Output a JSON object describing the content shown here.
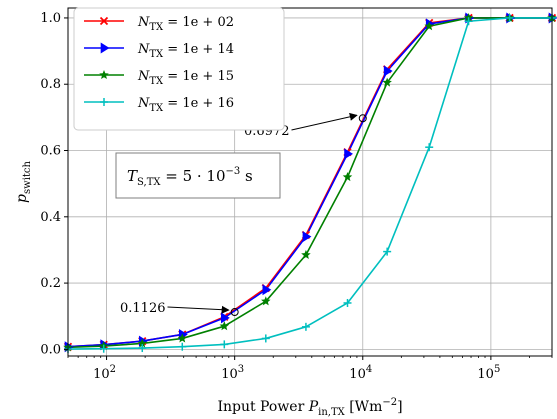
{
  "chart_data": {
    "type": "line",
    "xscale": "log",
    "xlim": [
      50,
      300000
    ],
    "ylim": [
      -0.02,
      1.03
    ],
    "grid": true,
    "legend_position": "top-left",
    "xlabel": "Input Power P_in,TX [Wm^-2]",
    "ylabel": "p_switch",
    "x_ticks": [
      {
        "value": 100,
        "base": "10",
        "exp": "2"
      },
      {
        "value": 1000,
        "base": "10",
        "exp": "3"
      },
      {
        "value": 10000,
        "base": "10",
        "exp": "4"
      },
      {
        "value": 100000,
        "base": "10",
        "exp": "5"
      }
    ],
    "y_ticks": [
      {
        "value": 0.0,
        "label": "0.0"
      },
      {
        "value": 0.2,
        "label": "0.2"
      },
      {
        "value": 0.4,
        "label": "0.4"
      },
      {
        "value": 0.6,
        "label": "0.6"
      },
      {
        "value": 0.8,
        "label": "0.8"
      },
      {
        "value": 1.0,
        "label": "1.0"
      }
    ],
    "series": [
      {
        "name": "N_TX = 1e+02",
        "color": "#ff0000",
        "marker": "x",
        "x": [
          50,
          95,
          190,
          390,
          830,
          1750,
          3600,
          7600,
          15500,
          33000,
          67000,
          140000,
          300000
        ],
        "y": [
          0.008,
          0.014,
          0.025,
          0.045,
          0.098,
          0.185,
          0.345,
          0.595,
          0.845,
          0.985,
          1.0,
          1.0,
          1.0
        ]
      },
      {
        "name": "N_TX = 1e+14",
        "color": "#0000ff",
        "marker": "triangle-right",
        "x": [
          50,
          95,
          190,
          390,
          830,
          1750,
          3600,
          7600,
          15500,
          33000,
          67000,
          140000,
          300000
        ],
        "y": [
          0.008,
          0.014,
          0.025,
          0.045,
          0.095,
          0.18,
          0.34,
          0.59,
          0.84,
          0.982,
          1.0,
          1.0,
          1.0
        ]
      },
      {
        "name": "N_TX = 1e+15",
        "color": "#008000",
        "marker": "star",
        "x": [
          50,
          95,
          190,
          390,
          830,
          1750,
          3600,
          7600,
          15500,
          33000,
          67000,
          140000,
          300000
        ],
        "y": [
          0.006,
          0.01,
          0.018,
          0.033,
          0.07,
          0.145,
          0.285,
          0.52,
          0.805,
          0.975,
          1.0,
          1.0,
          1.0
        ]
      },
      {
        "name": "N_TX = 1e+16",
        "color": "#00bfbf",
        "marker": "plus",
        "x": [
          50,
          95,
          190,
          390,
          830,
          1750,
          3600,
          7600,
          15500,
          33000,
          67000,
          140000,
          300000
        ],
        "y": [
          0.001,
          0.002,
          0.004,
          0.008,
          0.015,
          0.033,
          0.068,
          0.14,
          0.295,
          0.61,
          0.99,
          1.0,
          1.0
        ]
      }
    ],
    "legend": [
      {
        "base": "N",
        "sub": "TX",
        "eq": " = 1e + 02"
      },
      {
        "base": "N",
        "sub": "TX",
        "eq": " = 1e + 14"
      },
      {
        "base": "N",
        "sub": "TX",
        "eq": " = 1e + 15"
      },
      {
        "base": "N",
        "sub": "TX",
        "eq": " = 1e + 16"
      }
    ],
    "annotations": [
      {
        "label": "0.6972",
        "x": 10000,
        "y": 0.6972
      },
      {
        "label": "0.1126",
        "x": 1000,
        "y": 0.1126
      }
    ],
    "textbox": {
      "label": "T_S,TX = 5 · 10^-3 s",
      "base": "T",
      "sub": "S,TX",
      "eq": " = 5 · 10",
      "exp": "−3",
      "unit": " s"
    },
    "xlabel_parts": {
      "pre": "Input Power ",
      "base": "P",
      "sub": "in,TX",
      "unit_pre": " [Wm",
      "unit_exp": "−2",
      "unit_post": "]"
    },
    "ylabel_parts": {
      "base": "p",
      "sub": "switch"
    }
  }
}
